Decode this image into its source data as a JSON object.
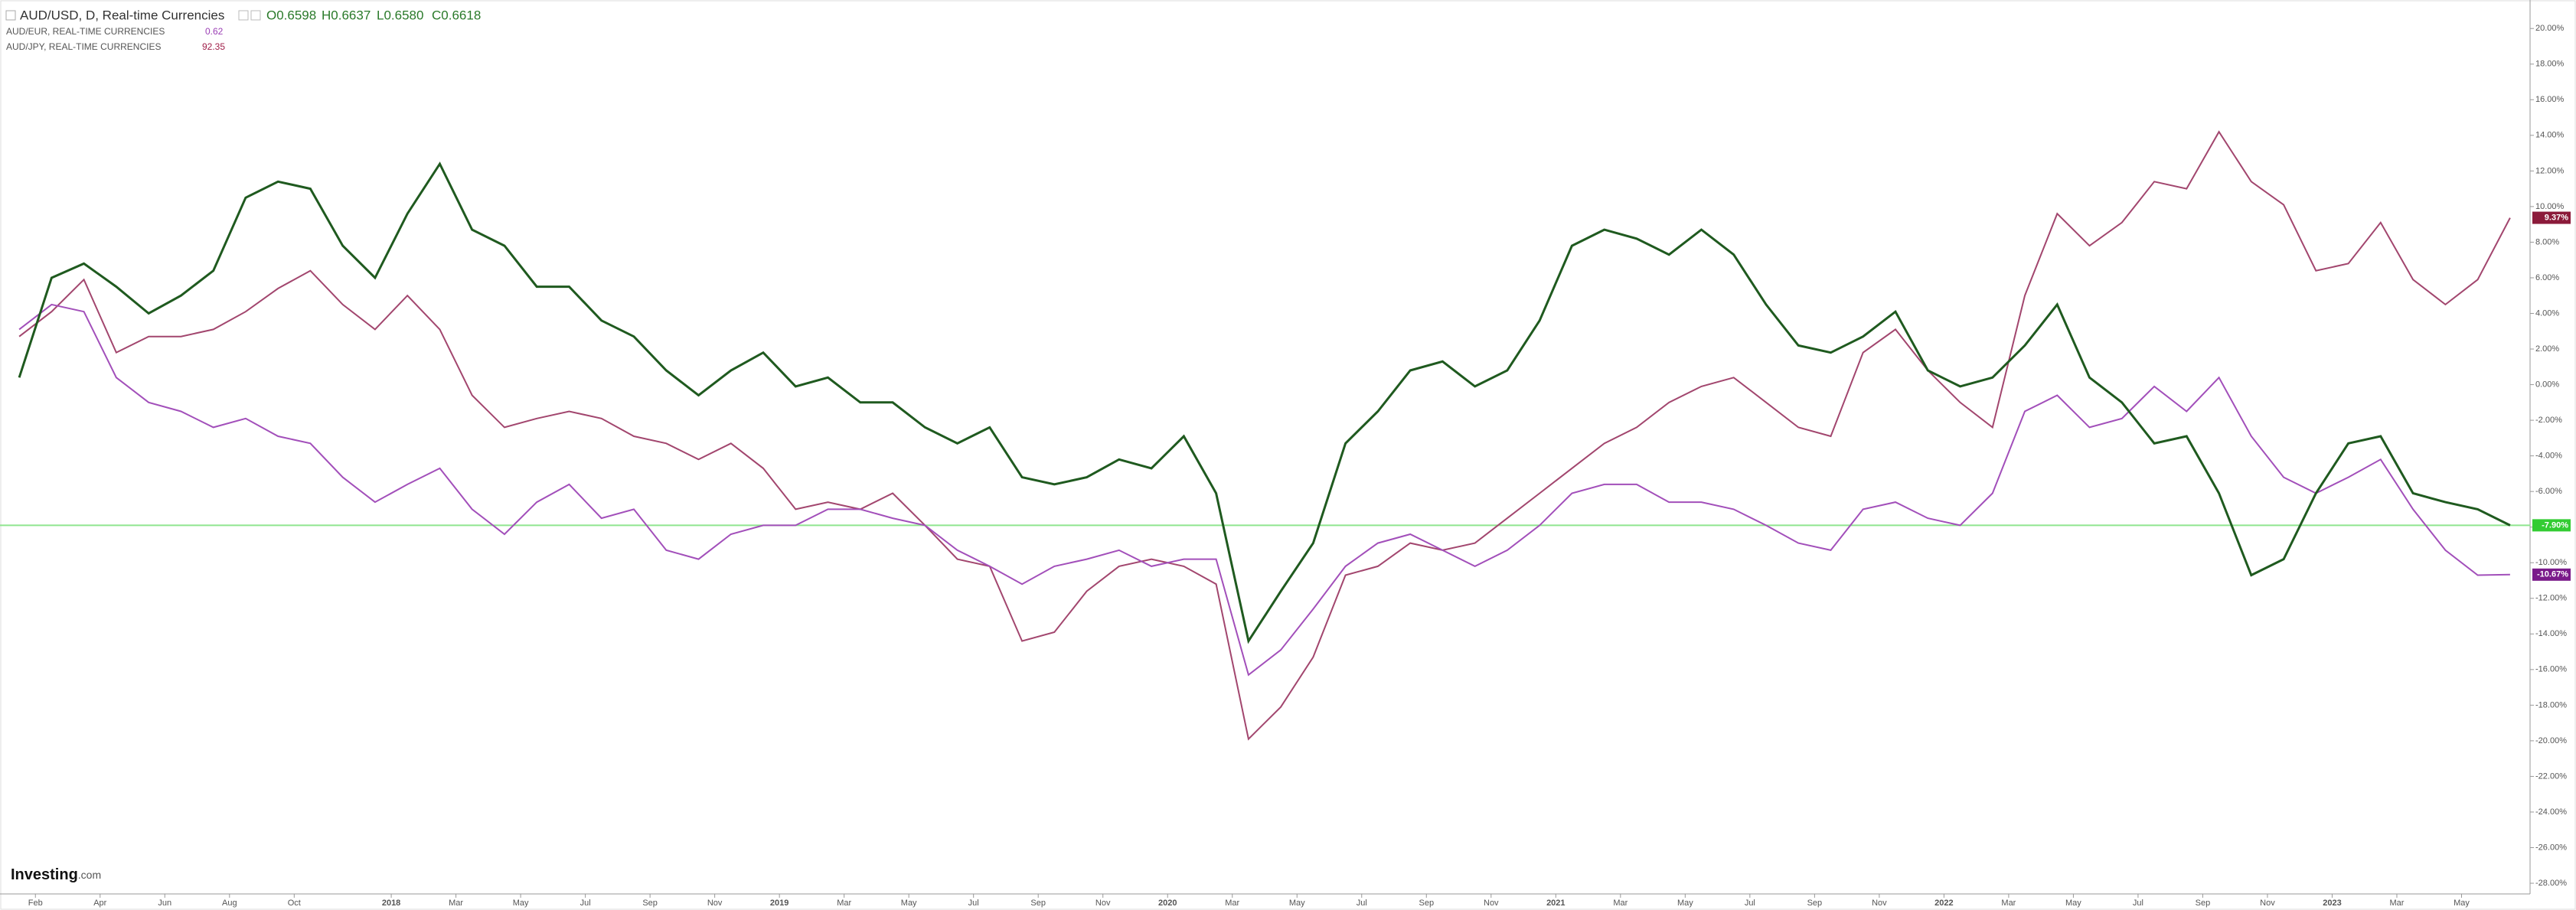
{
  "chart_data": {
    "type": "line",
    "title": "AUD/USD, D, Real-time Currencies",
    "ohlc": [
      "O0.6598",
      "H0.6637",
      "L0.6580",
      "C0.6618"
    ],
    "logo": "Investing",
    "logo_suffix": ".com",
    "categories": [
      null,
      "Feb",
      null,
      "Apr",
      null,
      "Jun",
      null,
      "Aug",
      null,
      "Oct",
      null,
      null,
      "2018",
      null,
      "Mar",
      null,
      "May",
      null,
      "Jul",
      null,
      "Sep",
      null,
      "Nov",
      null,
      "2019",
      null,
      "Mar",
      null,
      "May",
      null,
      "Jul",
      null,
      "Sep",
      null,
      "Nov",
      null,
      "2020",
      null,
      "Mar",
      null,
      "May",
      null,
      "Jul",
      null,
      "Sep",
      null,
      "Nov",
      null,
      "2021",
      null,
      "Mar",
      null,
      "May",
      null,
      "Jul",
      null,
      "Sep",
      null,
      "Nov",
      null,
      "2022",
      null,
      "Mar",
      null,
      "May",
      null,
      "Jul",
      null,
      "Sep",
      null,
      "Nov",
      null,
      "2023",
      null,
      "Mar",
      null,
      "May",
      null
    ],
    "ylim": [
      -28.6,
      21.6
    ],
    "yticks": [
      {
        "value": 20,
        "label": "20.00%"
      },
      {
        "value": 18,
        "label": "18.00%"
      },
      {
        "value": 16,
        "label": "16.00%"
      },
      {
        "value": 14,
        "label": "14.00%"
      },
      {
        "value": 12,
        "label": "12.00%"
      },
      {
        "value": 10,
        "label": "10.00%"
      },
      {
        "value": 8,
        "label": "8.00%"
      },
      {
        "value": 6,
        "label": "6.00%"
      },
      {
        "value": 4,
        "label": "4.00%"
      },
      {
        "value": 2,
        "label": "2.00%"
      },
      {
        "value": 0,
        "label": "0.00%"
      },
      {
        "value": -2,
        "label": "-2.00%"
      },
      {
        "value": -4,
        "label": "-4.00%"
      },
      {
        "value": -6,
        "label": "-6.00%"
      },
      {
        "value": -8,
        "label": "-8.00%"
      },
      {
        "value": -10,
        "label": "-10.00%"
      },
      {
        "value": -12,
        "label": "-12.00%"
      },
      {
        "value": -14,
        "label": "-14.00%"
      },
      {
        "value": -16,
        "label": "-16.00%"
      },
      {
        "value": -18,
        "label": "-18.00%"
      },
      {
        "value": -20,
        "label": "-20.00%"
      },
      {
        "value": -22,
        "label": "-22.00%"
      },
      {
        "value": -24,
        "label": "-24.00%"
      },
      {
        "value": -26,
        "label": "-26.00%"
      },
      {
        "value": -28,
        "label": "-28.00%"
      }
    ],
    "series": [
      {
        "name": "AUD/USD, D, Real-time Currencies",
        "color": "#1f5a1f",
        "label_color": "#33cc33",
        "last_label": "-7.90%",
        "values": [
          0.4,
          6,
          6.8,
          5.5,
          4,
          5,
          6.4,
          10.5,
          11.4,
          11,
          7.8,
          6,
          9.6,
          12.4,
          8.7,
          7.8,
          5.5,
          5.5,
          3.6,
          2.7,
          0.8,
          -0.6,
          0.8,
          1.8,
          -0.1,
          0.4,
          -1,
          -1,
          -2.4,
          -3.3,
          -2.4,
          -5.2,
          -5.6,
          -5.2,
          -4.2,
          -4.7,
          -2.9,
          -6.1,
          -14.4,
          -11.6,
          -8.9,
          -3.3,
          -1.5,
          0.8,
          1.3,
          -0.1,
          0.8,
          3.6,
          7.8,
          8.7,
          8.2,
          7.3,
          8.7,
          7.3,
          4.5,
          2.2,
          1.8,
          2.7,
          4.1,
          0.8,
          -0.1,
          0.4,
          2.2,
          4.5,
          0.4,
          -1,
          -3.3,
          -2.9,
          -6.1,
          -10.7,
          -9.8,
          -6.1,
          -3.3,
          -2.9,
          -6.1,
          -6.6,
          -7,
          -7.9
        ]
      },
      {
        "name": "AUD/EUR, REAL-TIME CURRENCIES",
        "price": "0.62",
        "color": "#a24fba",
        "label_color": "#7a1a8a",
        "last_label": "-10.67%",
        "values": [
          3.1,
          4.5,
          4.1,
          0.4,
          -1,
          -1.5,
          -2.4,
          -1.9,
          -2.9,
          -3.3,
          -5.2,
          -6.6,
          -5.6,
          -4.7,
          -7,
          -8.4,
          -6.6,
          -5.6,
          -7.5,
          -7,
          -9.3,
          -9.8,
          -8.4,
          -7.9,
          -7.9,
          -7,
          -7,
          -7.5,
          -7.9,
          -9.3,
          -10.2,
          -11.2,
          -10.2,
          -9.8,
          -9.3,
          -10.2,
          -9.8,
          -9.8,
          -16.3,
          -14.9,
          -12.6,
          -10.2,
          -8.9,
          -8.4,
          -9.3,
          -10.2,
          -9.3,
          -7.9,
          -6.1,
          -5.6,
          -5.6,
          -6.6,
          -6.6,
          -7,
          -7.9,
          -8.9,
          -9.3,
          -7,
          -6.6,
          -7.5,
          -7.9,
          -6.1,
          -1.5,
          -0.6,
          -2.4,
          -1.9,
          -0.1,
          -1.5,
          0.4,
          -2.9,
          -5.2,
          -6.1,
          -5.2,
          -4.2,
          -7,
          -9.3,
          -10.7,
          -10.67
        ]
      },
      {
        "name": "AUD/JPY, REAL-TIME CURRENCIES",
        "price": "92.35",
        "color": "#a2466e",
        "label_color": "#8b1a3a",
        "last_label": "9.37%",
        "values": [
          2.7,
          4.1,
          5.9,
          1.8,
          2.7,
          2.7,
          3.1,
          4.1,
          5.4,
          6.4,
          4.5,
          3.1,
          5,
          3.1,
          -0.6,
          -2.4,
          -1.9,
          -1.5,
          -1.9,
          -2.9,
          -3.3,
          -4.2,
          -3.3,
          -4.7,
          -7,
          -6.6,
          -7,
          -6.1,
          -7.9,
          -9.8,
          -10.2,
          -14.4,
          -13.9,
          -11.6,
          -10.2,
          -9.8,
          -10.2,
          -11.2,
          -19.9,
          -18.1,
          -15.3,
          -10.7,
          -10.2,
          -8.9,
          -9.3,
          -8.9,
          -7.5,
          -6.1,
          -4.7,
          -3.3,
          -2.4,
          -1,
          -0.1,
          0.4,
          -1,
          -2.4,
          -2.9,
          1.8,
          3.1,
          0.8,
          -1,
          -2.4,
          5,
          9.6,
          7.8,
          9.1,
          11.4,
          11,
          14.2,
          11.4,
          10.1,
          6.4,
          6.8,
          9.1,
          5.9,
          4.5,
          5.9,
          9.37
        ]
      }
    ]
  }
}
